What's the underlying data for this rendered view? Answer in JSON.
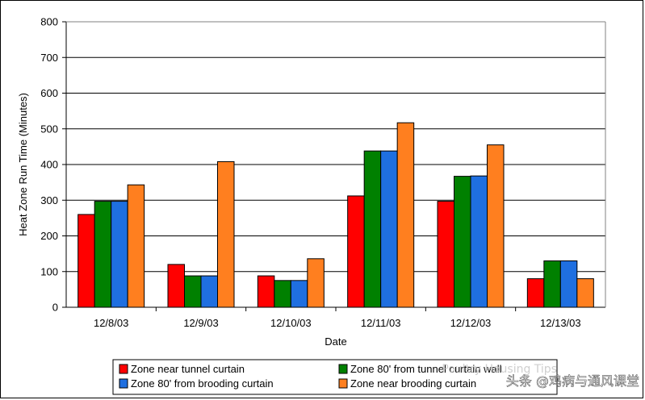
{
  "chart_data": {
    "type": "bar",
    "title": "",
    "xlabel": "Date",
    "ylabel": "Heat Zone Run Time (Minutes)",
    "ylim": [
      0,
      800
    ],
    "yticks": [
      0,
      100,
      200,
      300,
      400,
      500,
      600,
      700,
      800
    ],
    "grid": true,
    "legend_position": "bottom",
    "categories": [
      "12/8/03",
      "12/9/03",
      "12/10/03",
      "12/11/03",
      "12/12/03",
      "12/13/03"
    ],
    "series": [
      {
        "name": "Zone near tunnel curtain",
        "color": "#ff0000",
        "values": [
          260,
          120,
          88,
          312,
          297,
          80
        ]
      },
      {
        "name": "Zone 80' from tunnel curtain wall",
        "color": "#008000",
        "values": [
          297,
          88,
          75,
          438,
          367,
          130
        ]
      },
      {
        "name": "Zone 80' from brooding curtain",
        "color": "#1f6fe0",
        "values": [
          297,
          88,
          75,
          438,
          368,
          130
        ]
      },
      {
        "name": "Zone near brooding curtain",
        "color": "#ff7f1f",
        "values": [
          343,
          408,
          136,
          517,
          455,
          80
        ]
      }
    ]
  },
  "watermark": {
    "top_text": "Poultry Housing Tips",
    "bottom_text": "头条 @鸡病与通风课堂"
  }
}
